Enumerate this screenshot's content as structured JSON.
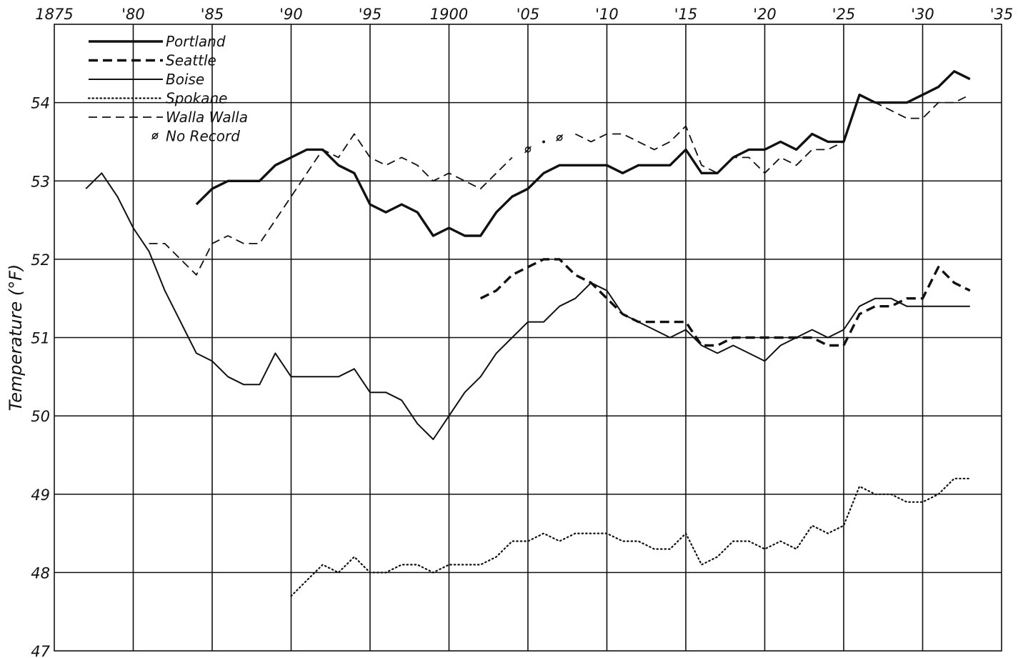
{
  "chart_data": {
    "type": "line",
    "ylabel": "Temperature (°F)",
    "xlabel": "",
    "title": "",
    "xlim": [
      1875,
      1935
    ],
    "ylim": [
      47,
      55
    ],
    "grid": true,
    "legend_position": "top-left",
    "x_ticks": [
      {
        "value": 1875,
        "label": "1875"
      },
      {
        "value": 1880,
        "label": "'80"
      },
      {
        "value": 1885,
        "label": "'85"
      },
      {
        "value": 1890,
        "label": "'90"
      },
      {
        "value": 1895,
        "label": "'95"
      },
      {
        "value": 1900,
        "label": "1900"
      },
      {
        "value": 1905,
        "label": "'05"
      },
      {
        "value": 1910,
        "label": "'10"
      },
      {
        "value": 1915,
        "label": "'15"
      },
      {
        "value": 1920,
        "label": "'20"
      },
      {
        "value": 1925,
        "label": "'25"
      },
      {
        "value": 1930,
        "label": "'30"
      },
      {
        "value": 1935,
        "label": "'35"
      }
    ],
    "y_ticks": [
      {
        "value": 47,
        "label": "47"
      },
      {
        "value": 48,
        "label": "48"
      },
      {
        "value": 49,
        "label": "49"
      },
      {
        "value": 50,
        "label": "50"
      },
      {
        "value": 51,
        "label": "51"
      },
      {
        "value": 52,
        "label": "52"
      },
      {
        "value": 53,
        "label": "53"
      },
      {
        "value": 54,
        "label": "54"
      }
    ],
    "legend": [
      {
        "name": "Portland",
        "style": "thick-solid"
      },
      {
        "name": "Seattle",
        "style": "thick-dashed"
      },
      {
        "name": "Boise",
        "style": "thin-solid"
      },
      {
        "name": "Spokane",
        "style": "dotted"
      },
      {
        "name": "Walla Walla",
        "style": "thin-dashed"
      },
      {
        "name": "No Record",
        "style": "marker"
      }
    ],
    "series": [
      {
        "name": "Portland",
        "style": "thick-solid",
        "segments": [
          [
            [
              1884,
              52.7
            ],
            [
              1885,
              52.9
            ],
            [
              1886,
              53.0
            ],
            [
              1887,
              53.0
            ],
            [
              1888,
              53.0
            ],
            [
              1889,
              53.2
            ],
            [
              1890,
              53.3
            ],
            [
              1891,
              53.4
            ],
            [
              1892,
              53.4
            ],
            [
              1893,
              53.2
            ],
            [
              1894,
              53.1
            ],
            [
              1895,
              52.7
            ],
            [
              1896,
              52.6
            ],
            [
              1897,
              52.7
            ],
            [
              1898,
              52.6
            ],
            [
              1899,
              52.3
            ],
            [
              1900,
              52.4
            ],
            [
              1901,
              52.3
            ],
            [
              1902,
              52.3
            ],
            [
              1903,
              52.6
            ],
            [
              1904,
              52.8
            ],
            [
              1905,
              52.9
            ],
            [
              1906,
              53.1
            ],
            [
              1907,
              53.2
            ],
            [
              1908,
              53.2
            ],
            [
              1909,
              53.2
            ],
            [
              1910,
              53.2
            ],
            [
              1911,
              53.1
            ],
            [
              1912,
              53.2
            ],
            [
              1913,
              53.2
            ],
            [
              1914,
              53.2
            ],
            [
              1915,
              53.4
            ],
            [
              1916,
              53.1
            ],
            [
              1917,
              53.1
            ],
            [
              1918,
              53.3
            ],
            [
              1919,
              53.4
            ],
            [
              1920,
              53.4
            ],
            [
              1921,
              53.5
            ],
            [
              1922,
              53.4
            ],
            [
              1923,
              53.6
            ],
            [
              1924,
              53.5
            ],
            [
              1925,
              53.5
            ],
            [
              1926,
              54.1
            ],
            [
              1927,
              54.0
            ],
            [
              1928,
              54.0
            ],
            [
              1929,
              54.0
            ],
            [
              1930,
              54.1
            ],
            [
              1931,
              54.2
            ],
            [
              1932,
              54.4
            ],
            [
              1933,
              54.3
            ]
          ]
        ]
      },
      {
        "name": "Seattle",
        "style": "thick-dashed",
        "segments": [
          [
            [
              1902,
              51.5
            ],
            [
              1903,
              51.6
            ],
            [
              1904,
              51.8
            ],
            [
              1905,
              51.9
            ],
            [
              1906,
              52.0
            ],
            [
              1907,
              52.0
            ],
            [
              1908,
              51.8
            ],
            [
              1909,
              51.7
            ],
            [
              1910,
              51.5
            ],
            [
              1911,
              51.3
            ],
            [
              1912,
              51.2
            ],
            [
              1913,
              51.2
            ],
            [
              1914,
              51.2
            ],
            [
              1915,
              51.2
            ],
            [
              1916,
              50.9
            ],
            [
              1917,
              50.9
            ],
            [
              1918,
              51.0
            ],
            [
              1919,
              51.0
            ],
            [
              1920,
              51.0
            ],
            [
              1921,
              51.0
            ],
            [
              1922,
              51.0
            ],
            [
              1923,
              51.0
            ],
            [
              1924,
              50.9
            ],
            [
              1925,
              50.9
            ],
            [
              1926,
              51.3
            ],
            [
              1927,
              51.4
            ],
            [
              1928,
              51.4
            ],
            [
              1929,
              51.5
            ],
            [
              1930,
              51.5
            ],
            [
              1931,
              51.9
            ],
            [
              1932,
              51.7
            ],
            [
              1933,
              51.6
            ]
          ]
        ]
      },
      {
        "name": "Boise",
        "style": "thin-solid",
        "segments": [
          [
            [
              1877,
              52.9
            ],
            [
              1878,
              53.1
            ],
            [
              1879,
              52.8
            ],
            [
              1880,
              52.4
            ],
            [
              1881,
              52.1
            ],
            [
              1882,
              51.6
            ],
            [
              1883,
              51.2
            ],
            [
              1884,
              50.8
            ],
            [
              1885,
              50.7
            ],
            [
              1886,
              50.5
            ],
            [
              1887,
              50.4
            ],
            [
              1888,
              50.4
            ],
            [
              1889,
              50.8
            ],
            [
              1890,
              50.5
            ],
            [
              1891,
              50.5
            ],
            [
              1892,
              50.5
            ],
            [
              1893,
              50.5
            ],
            [
              1894,
              50.6
            ],
            [
              1895,
              50.3
            ],
            [
              1896,
              50.3
            ],
            [
              1897,
              50.2
            ],
            [
              1898,
              49.9
            ],
            [
              1899,
              49.7
            ],
            [
              1900,
              50.0
            ],
            [
              1901,
              50.3
            ],
            [
              1902,
              50.5
            ],
            [
              1903,
              50.8
            ],
            [
              1904,
              51.0
            ],
            [
              1905,
              51.2
            ],
            [
              1906,
              51.2
            ],
            [
              1907,
              51.4
            ],
            [
              1908,
              51.5
            ],
            [
              1909,
              51.7
            ],
            [
              1910,
              51.6
            ],
            [
              1911,
              51.3
            ],
            [
              1912,
              51.2
            ],
            [
              1913,
              51.1
            ],
            [
              1914,
              51.0
            ],
            [
              1915,
              51.1
            ],
            [
              1916,
              50.9
            ],
            [
              1917,
              50.8
            ],
            [
              1918,
              50.9
            ],
            [
              1919,
              50.8
            ],
            [
              1920,
              50.7
            ],
            [
              1921,
              50.9
            ],
            [
              1922,
              51.0
            ],
            [
              1923,
              51.1
            ],
            [
              1924,
              51.0
            ],
            [
              1925,
              51.1
            ],
            [
              1926,
              51.4
            ],
            [
              1927,
              51.5
            ],
            [
              1928,
              51.5
            ],
            [
              1929,
              51.4
            ],
            [
              1930,
              51.4
            ],
            [
              1931,
              51.4
            ],
            [
              1932,
              51.4
            ],
            [
              1933,
              51.4
            ]
          ]
        ]
      },
      {
        "name": "Spokane",
        "style": "dotted",
        "segments": [
          [
            [
              1890,
              47.7
            ],
            [
              1891,
              47.9
            ],
            [
              1892,
              48.1
            ],
            [
              1893,
              48.0
            ],
            [
              1894,
              48.2
            ],
            [
              1895,
              48.0
            ],
            [
              1896,
              48.0
            ],
            [
              1897,
              48.1
            ],
            [
              1898,
              48.1
            ],
            [
              1899,
              48.0
            ],
            [
              1900,
              48.1
            ],
            [
              1901,
              48.1
            ],
            [
              1902,
              48.1
            ],
            [
              1903,
              48.2
            ],
            [
              1904,
              48.4
            ],
            [
              1905,
              48.4
            ],
            [
              1906,
              48.5
            ],
            [
              1907,
              48.4
            ],
            [
              1908,
              48.5
            ],
            [
              1909,
              48.5
            ],
            [
              1910,
              48.5
            ],
            [
              1911,
              48.4
            ],
            [
              1912,
              48.4
            ],
            [
              1913,
              48.3
            ],
            [
              1914,
              48.3
            ],
            [
              1915,
              48.5
            ],
            [
              1916,
              48.1
            ],
            [
              1917,
              48.2
            ],
            [
              1918,
              48.4
            ],
            [
              1919,
              48.4
            ],
            [
              1920,
              48.3
            ],
            [
              1921,
              48.4
            ],
            [
              1922,
              48.3
            ],
            [
              1923,
              48.6
            ],
            [
              1924,
              48.5
            ],
            [
              1925,
              48.6
            ],
            [
              1926,
              49.1
            ],
            [
              1927,
              49.0
            ],
            [
              1928,
              49.0
            ],
            [
              1929,
              48.9
            ],
            [
              1930,
              48.9
            ],
            [
              1931,
              49.0
            ],
            [
              1932,
              49.2
            ],
            [
              1933,
              49.2
            ]
          ]
        ]
      },
      {
        "name": "Walla Walla",
        "style": "thin-dashed",
        "segments": [
          [
            [
              1881,
              52.2
            ],
            [
              1882,
              52.2
            ],
            [
              1883,
              52.0
            ],
            [
              1884,
              51.8
            ],
            [
              1885,
              52.2
            ],
            [
              1886,
              52.3
            ],
            [
              1887,
              52.2
            ],
            [
              1888,
              52.2
            ],
            [
              1889,
              52.5
            ],
            [
              1890,
              52.8
            ],
            [
              1891,
              53.1
            ],
            [
              1892,
              53.4
            ],
            [
              1893,
              53.3
            ],
            [
              1894,
              53.6
            ],
            [
              1895,
              53.3
            ],
            [
              1896,
              53.2
            ],
            [
              1897,
              53.3
            ],
            [
              1898,
              53.2
            ],
            [
              1899,
              53.0
            ],
            [
              1900,
              53.1
            ],
            [
              1901,
              53.0
            ],
            [
              1902,
              52.9
            ],
            [
              1903,
              53.1
            ],
            [
              1904,
              53.3
            ]
          ],
          [
            [
              1908,
              53.6
            ],
            [
              1909,
              53.5
            ],
            [
              1910,
              53.6
            ],
            [
              1911,
              53.6
            ],
            [
              1912,
              53.5
            ],
            [
              1913,
              53.4
            ],
            [
              1914,
              53.5
            ],
            [
              1915,
              53.7
            ],
            [
              1916,
              53.2
            ],
            [
              1917,
              53.1
            ],
            [
              1918,
              53.3
            ],
            [
              1919,
              53.3
            ],
            [
              1920,
              53.1
            ],
            [
              1921,
              53.3
            ],
            [
              1922,
              53.2
            ],
            [
              1923,
              53.4
            ],
            [
              1924,
              53.4
            ],
            [
              1925,
              53.5
            ],
            [
              1926,
              54.1
            ],
            [
              1927,
              54.0
            ],
            [
              1928,
              53.9
            ],
            [
              1929,
              53.8
            ],
            [
              1930,
              53.8
            ],
            [
              1931,
              54.0
            ],
            [
              1932,
              54.0
            ],
            [
              1933,
              54.1
            ]
          ]
        ],
        "no_record_markers": [
          [
            1905,
            53.4
          ],
          [
            1906,
            53.5
          ],
          [
            1907,
            53.55
          ]
        ]
      }
    ]
  }
}
